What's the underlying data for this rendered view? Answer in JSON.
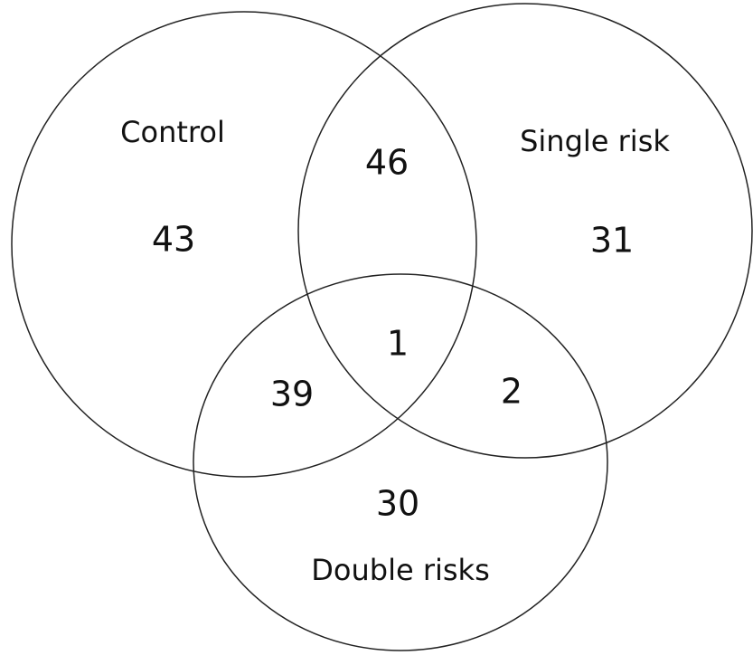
{
  "sets": [
    {
      "label": "Control"
    },
    {
      "label": "Single risk"
    },
    {
      "label": "Double risks"
    }
  ],
  "regions": [
    {
      "sets": "Control",
      "count": 43
    },
    {
      "sets": "Control & Single risk",
      "count": 46
    },
    {
      "sets": "Single risk",
      "count": 31
    },
    {
      "sets": "All",
      "count": 1
    },
    {
      "sets": "Control & Double risks",
      "count": 39
    },
    {
      "sets": "Single risk & Double risks",
      "count": 2
    },
    {
      "sets": "Double risks",
      "count": 30
    }
  ]
}
